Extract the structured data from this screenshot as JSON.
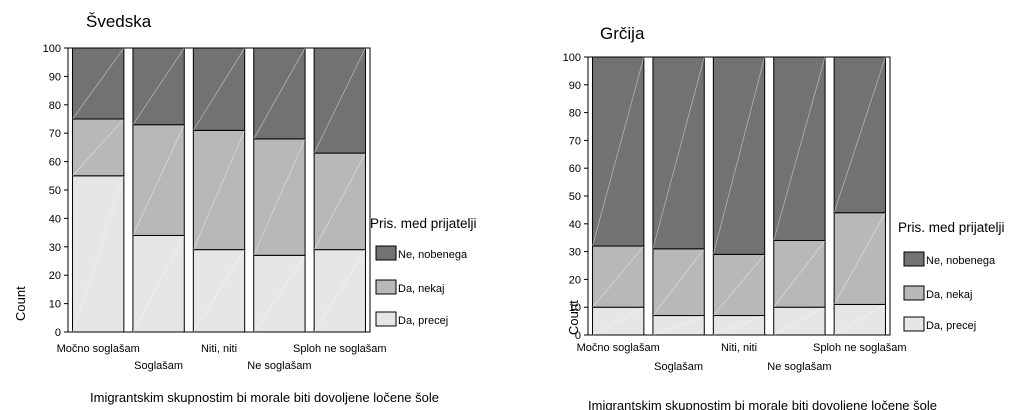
{
  "chart_data": [
    {
      "type": "bar",
      "stacked": true,
      "percent_scale": true,
      "title": "Švedska",
      "xlabel": "Imigrantskim skupnostim bi morale biti dovoljene ločene šole",
      "ylabel": "Count",
      "ylim": [
        0,
        100
      ],
      "yticks": [
        0,
        10,
        20,
        30,
        40,
        50,
        60,
        70,
        80,
        90,
        100
      ],
      "categories": [
        "Močno soglašam",
        "Soglašam",
        "Niti, niti",
        "Ne soglašam",
        "Sploh ne soglašam"
      ],
      "legend_title": "Pris. med prijatelji",
      "legend_placement": "right",
      "series": [
        {
          "name": "Da, precej",
          "values": [
            55,
            34,
            29,
            27,
            29
          ],
          "color": "#e6e6e6"
        },
        {
          "name": "Da, nekaj",
          "values": [
            20,
            39,
            42,
            41,
            34
          ],
          "color": "#b8b8b8"
        },
        {
          "name": "Ne, nobenega",
          "values": [
            25,
            27,
            29,
            32,
            37
          ],
          "color": "#727272"
        }
      ]
    },
    {
      "type": "bar",
      "stacked": true,
      "percent_scale": true,
      "title": "Grčija",
      "xlabel": "Imigrantskim skupnostim bi morale biti dovoljene ločene šole",
      "ylabel": "Count",
      "ylim": [
        0,
        100
      ],
      "yticks": [
        0,
        10,
        20,
        30,
        40,
        50,
        60,
        70,
        80,
        90,
        100
      ],
      "categories": [
        "Močno soglašam",
        "Soglašam",
        "Niti, niti",
        "Ne soglašam",
        "Sploh ne soglašam"
      ],
      "legend_title": "Pris. med prijatelji",
      "legend_placement": "right",
      "series": [
        {
          "name": "Da, precej",
          "values": [
            10,
            7,
            7,
            10,
            11
          ],
          "color": "#e6e6e6"
        },
        {
          "name": "Da, nekaj",
          "values": [
            22,
            24,
            22,
            24,
            33
          ],
          "color": "#b8b8b8"
        },
        {
          "name": "Ne, nobenega",
          "values": [
            68,
            69,
            71,
            66,
            56
          ],
          "color": "#727272"
        }
      ]
    }
  ]
}
